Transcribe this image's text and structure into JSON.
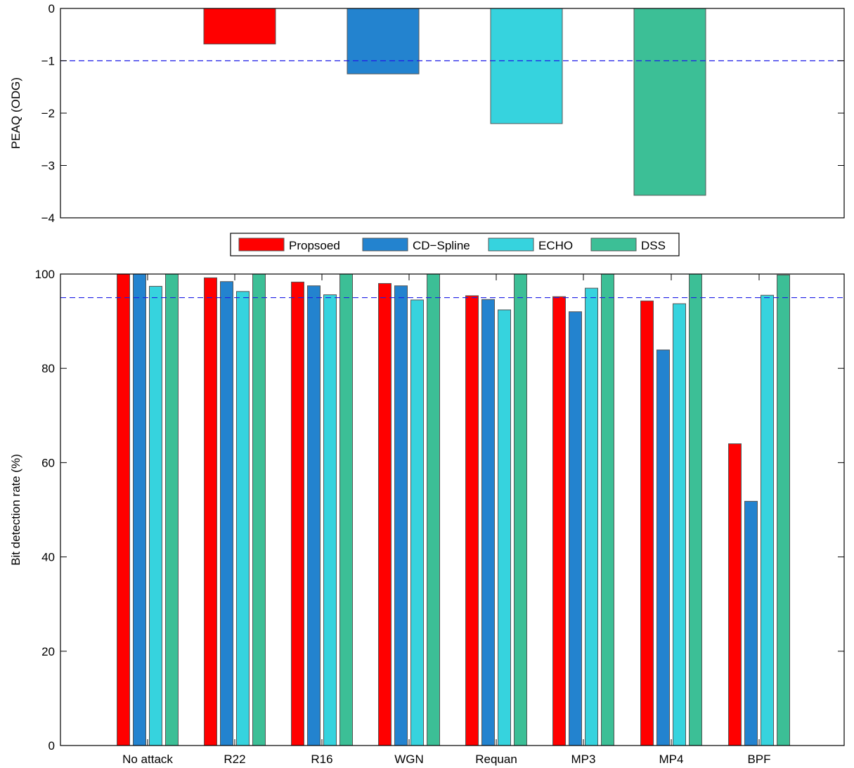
{
  "chart_data": [
    {
      "type": "bar",
      "ylabel": "PEAQ (ODG)",
      "ylim": [
        -4,
        0
      ],
      "yticks": [
        0,
        -1,
        -2,
        -3,
        -4
      ],
      "ytick_labels": [
        "0",
        "−1",
        "−2",
        "−3",
        "−4"
      ],
      "reference_line": -1,
      "categories": [
        "Propsoed",
        "CD−Spline",
        "ECHO",
        "DSS"
      ],
      "values": [
        -0.68,
        -1.25,
        -2.2,
        -3.57
      ],
      "colors": [
        "#ff0000",
        "#2383cf",
        "#36d3de",
        "#3cbf96"
      ],
      "grid": false
    },
    {
      "type": "bar",
      "ylabel": "Bit detection rate (%)",
      "ylim": [
        0,
        100
      ],
      "yticks": [
        0,
        20,
        40,
        60,
        80,
        100
      ],
      "ytick_labels": [
        "0",
        "20",
        "40",
        "60",
        "80",
        "100"
      ],
      "reference_line": 95,
      "categories": [
        "No attack",
        "R22",
        "R16",
        "WGN",
        "Requan",
        "MP3",
        "MP4",
        "BPF"
      ],
      "series": [
        {
          "name": "Propsoed",
          "color": "#ff0000",
          "values": [
            100,
            99.2,
            98.3,
            98.0,
            95.4,
            95.2,
            94.3,
            64.0
          ]
        },
        {
          "name": "CD−Spline",
          "color": "#2383cf",
          "values": [
            100,
            98.4,
            97.5,
            97.5,
            94.6,
            92.0,
            83.9,
            51.8
          ]
        },
        {
          "name": "ECHO",
          "color": "#36d3de",
          "values": [
            97.4,
            96.3,
            95.6,
            94.5,
            92.4,
            97.0,
            93.7,
            95.5
          ]
        },
        {
          "name": "DSS",
          "color": "#3cbf96",
          "values": [
            100,
            100,
            100,
            100,
            100,
            100,
            100,
            99.8
          ]
        }
      ],
      "legend_position": "top-center",
      "grid": false
    }
  ],
  "legend": {
    "items": [
      {
        "label": "Propsoed",
        "color": "#ff0000"
      },
      {
        "label": "CD−Spline",
        "color": "#2383cf"
      },
      {
        "label": "ECHO",
        "color": "#36d3de"
      },
      {
        "label": "DSS",
        "color": "#3cbf96"
      }
    ]
  }
}
